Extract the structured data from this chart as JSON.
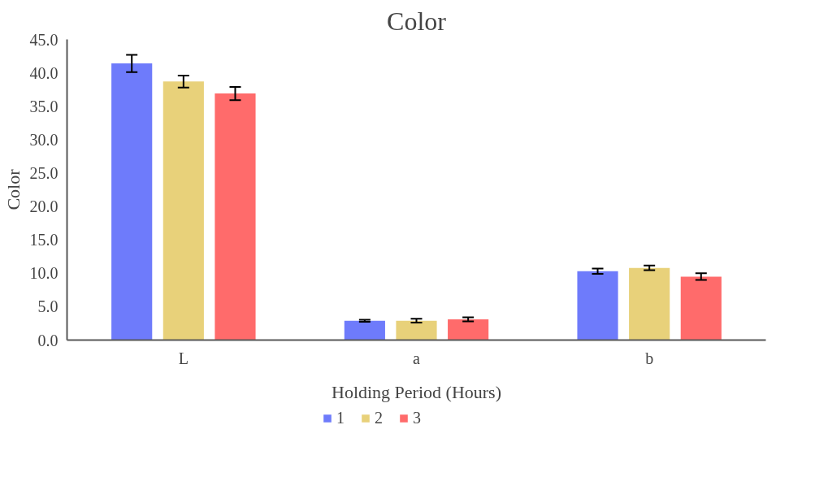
{
  "chart_data": {
    "type": "bar",
    "title": "Color",
    "xlabel": "Holding Period (Hours)",
    "ylabel": "Color",
    "categories": [
      "L",
      "a",
      "b"
    ],
    "series": [
      {
        "name": "1",
        "color": "#6e7bfb",
        "values": [
          41.4,
          2.9,
          10.3
        ],
        "errors": [
          1.3,
          0.15,
          0.4
        ]
      },
      {
        "name": "2",
        "color": "#e8d17a",
        "values": [
          38.7,
          2.9,
          10.8
        ],
        "errors": [
          0.9,
          0.3,
          0.35
        ]
      },
      {
        "name": "3",
        "color": "#ff6b6b",
        "values": [
          36.9,
          3.1,
          9.5
        ],
        "errors": [
          1.0,
          0.3,
          0.5
        ]
      }
    ],
    "ylim": [
      0,
      45
    ],
    "yticks": [
      {
        "value": 0,
        "label": "0.0"
      },
      {
        "value": 5,
        "label": "5.0"
      },
      {
        "value": 10,
        "label": "10.0"
      },
      {
        "value": 15,
        "label": "15.0"
      },
      {
        "value": 20,
        "label": "20.0"
      },
      {
        "value": 25,
        "label": "25.0"
      },
      {
        "value": 30,
        "label": "30.0"
      },
      {
        "value": 35,
        "label": "35.0"
      },
      {
        "value": 40,
        "label": "40.0"
      },
      {
        "value": 45,
        "label": "45.0"
      }
    ],
    "grid": false,
    "legend": "bottom"
  }
}
